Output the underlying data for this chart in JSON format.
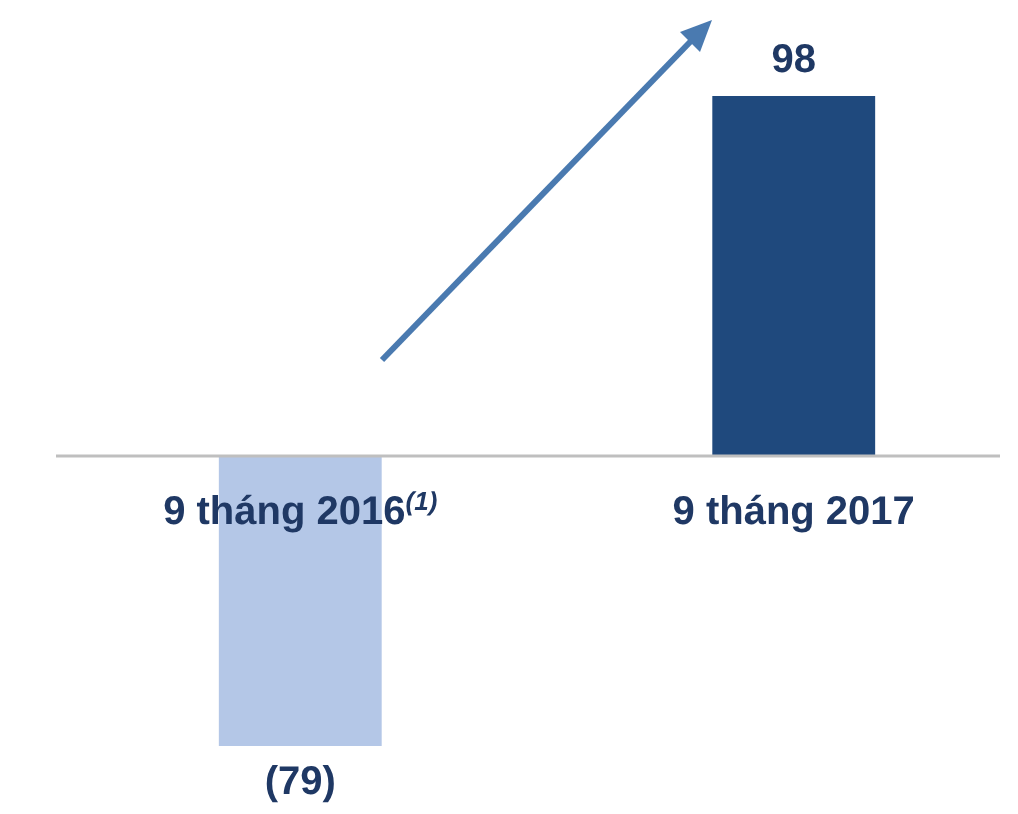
{
  "chart_data": {
    "type": "bar",
    "categories": [
      "9 tháng 2016$^{(1)}$",
      "9 tháng 2017"
    ],
    "values": [
      -79,
      98
    ],
    "colors": [
      "#b4c7e7",
      "#1f497d"
    ],
    "value_labels": [
      "(79)",
      "98"
    ]
  }
}
